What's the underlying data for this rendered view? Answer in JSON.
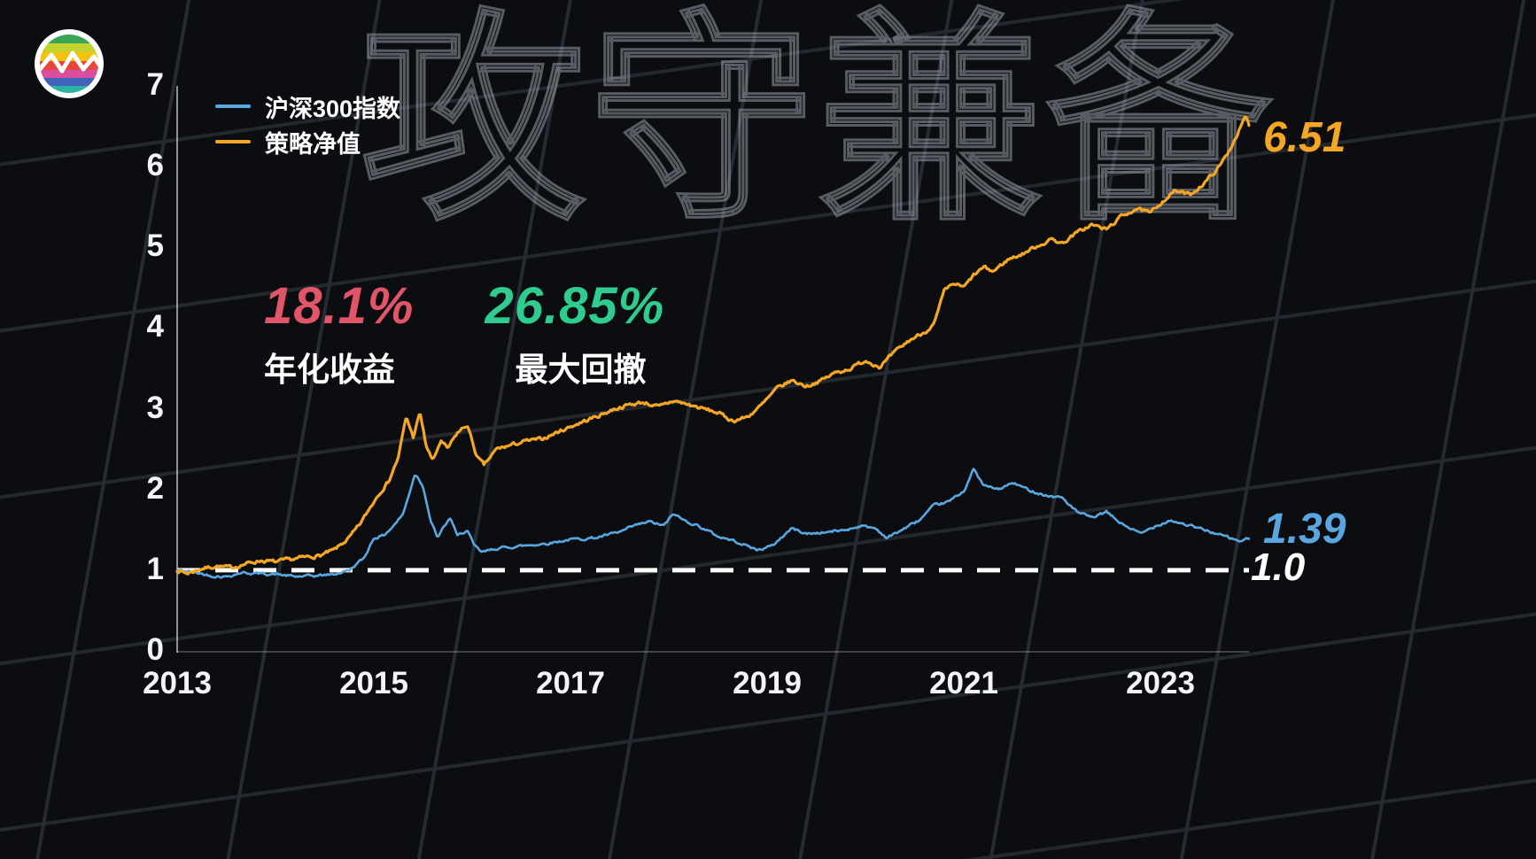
{
  "watermark": "攻守兼备",
  "logo": {
    "name": "rainbow-wave-logo"
  },
  "legend": {
    "items": [
      {
        "label": "沪深300指数",
        "color": "#5aa7e0"
      },
      {
        "label": "策略净值",
        "color": "#f5a623"
      }
    ]
  },
  "stats": {
    "annual_return_value": "18.1%",
    "annual_return_label": "年化收益",
    "annual_return_color": "#e25568",
    "max_drawdown_value": "26.85%",
    "max_drawdown_label": "最大回撤",
    "max_drawdown_color": "#2ecc8f"
  },
  "end_labels": {
    "strategy": "6.51",
    "index": "1.39",
    "baseline": "1.0"
  },
  "chart_data": {
    "type": "line",
    "title": "攻守兼备",
    "xlabel": "",
    "ylabel": "",
    "x_range": [
      2013,
      2024
    ],
    "y_range": [
      0,
      7
    ],
    "x_ticks": [
      2013,
      2015,
      2017,
      2019,
      2021,
      2023
    ],
    "y_ticks": [
      0,
      1,
      2,
      3,
      4,
      5,
      6,
      7
    ],
    "grid": false,
    "legend_position": "top-left",
    "baseline": 1.0,
    "series": [
      {
        "name": "沪深300指数",
        "color": "#5aa7e0",
        "end_value": 1.39,
        "points": [
          [
            2013.0,
            1.0
          ],
          [
            2013.15,
            0.98
          ],
          [
            2013.35,
            0.93
          ],
          [
            2013.5,
            0.92
          ],
          [
            2013.65,
            0.97
          ],
          [
            2013.8,
            0.96
          ],
          [
            2014.0,
            0.95
          ],
          [
            2014.2,
            0.92
          ],
          [
            2014.4,
            0.93
          ],
          [
            2014.6,
            0.95
          ],
          [
            2014.75,
            1.0
          ],
          [
            2014.9,
            1.15
          ],
          [
            2015.0,
            1.4
          ],
          [
            2015.1,
            1.43
          ],
          [
            2015.2,
            1.55
          ],
          [
            2015.3,
            1.7
          ],
          [
            2015.42,
            2.2
          ],
          [
            2015.5,
            2.05
          ],
          [
            2015.58,
            1.6
          ],
          [
            2015.65,
            1.4
          ],
          [
            2015.72,
            1.55
          ],
          [
            2015.78,
            1.65
          ],
          [
            2015.85,
            1.42
          ],
          [
            2015.95,
            1.5
          ],
          [
            2016.02,
            1.3
          ],
          [
            2016.1,
            1.22
          ],
          [
            2016.25,
            1.27
          ],
          [
            2016.5,
            1.3
          ],
          [
            2016.75,
            1.33
          ],
          [
            2017.0,
            1.38
          ],
          [
            2017.25,
            1.4
          ],
          [
            2017.5,
            1.47
          ],
          [
            2017.65,
            1.55
          ],
          [
            2017.8,
            1.6
          ],
          [
            2017.95,
            1.55
          ],
          [
            2018.05,
            1.7
          ],
          [
            2018.15,
            1.62
          ],
          [
            2018.3,
            1.55
          ],
          [
            2018.5,
            1.42
          ],
          [
            2018.7,
            1.35
          ],
          [
            2018.9,
            1.25
          ],
          [
            2019.05,
            1.3
          ],
          [
            2019.25,
            1.52
          ],
          [
            2019.4,
            1.45
          ],
          [
            2019.6,
            1.47
          ],
          [
            2019.8,
            1.5
          ],
          [
            2019.95,
            1.55
          ],
          [
            2020.1,
            1.52
          ],
          [
            2020.22,
            1.4
          ],
          [
            2020.4,
            1.52
          ],
          [
            2020.55,
            1.62
          ],
          [
            2020.7,
            1.8
          ],
          [
            2020.85,
            1.85
          ],
          [
            2021.0,
            1.98
          ],
          [
            2021.1,
            2.25
          ],
          [
            2021.2,
            2.05
          ],
          [
            2021.35,
            2.0
          ],
          [
            2021.5,
            2.08
          ],
          [
            2021.65,
            2.0
          ],
          [
            2021.85,
            1.92
          ],
          [
            2022.0,
            1.9
          ],
          [
            2022.15,
            1.72
          ],
          [
            2022.3,
            1.65
          ],
          [
            2022.45,
            1.72
          ],
          [
            2022.6,
            1.58
          ],
          [
            2022.8,
            1.45
          ],
          [
            2022.95,
            1.55
          ],
          [
            2023.1,
            1.62
          ],
          [
            2023.3,
            1.55
          ],
          [
            2023.5,
            1.48
          ],
          [
            2023.65,
            1.42
          ],
          [
            2023.8,
            1.36
          ],
          [
            2023.9,
            1.39
          ]
        ]
      },
      {
        "name": "策略净值",
        "color": "#f5a623",
        "end_value": 6.51,
        "points": [
          [
            2013.0,
            1.0
          ],
          [
            2013.1,
            0.96
          ],
          [
            2013.25,
            1.02
          ],
          [
            2013.4,
            1.05
          ],
          [
            2013.55,
            1.03
          ],
          [
            2013.7,
            1.08
          ],
          [
            2013.85,
            1.12
          ],
          [
            2014.0,
            1.1
          ],
          [
            2014.15,
            1.13
          ],
          [
            2014.3,
            1.16
          ],
          [
            2014.45,
            1.18
          ],
          [
            2014.6,
            1.25
          ],
          [
            2014.75,
            1.4
          ],
          [
            2014.85,
            1.55
          ],
          [
            2014.95,
            1.75
          ],
          [
            2015.05,
            1.95
          ],
          [
            2015.15,
            2.1
          ],
          [
            2015.25,
            2.4
          ],
          [
            2015.33,
            2.9
          ],
          [
            2015.4,
            2.65
          ],
          [
            2015.47,
            2.95
          ],
          [
            2015.53,
            2.55
          ],
          [
            2015.6,
            2.35
          ],
          [
            2015.68,
            2.6
          ],
          [
            2015.75,
            2.5
          ],
          [
            2015.85,
            2.7
          ],
          [
            2015.95,
            2.8
          ],
          [
            2016.05,
            2.4
          ],
          [
            2016.12,
            2.3
          ],
          [
            2016.25,
            2.5
          ],
          [
            2016.4,
            2.55
          ],
          [
            2016.55,
            2.6
          ],
          [
            2016.7,
            2.62
          ],
          [
            2016.85,
            2.7
          ],
          [
            2017.0,
            2.78
          ],
          [
            2017.15,
            2.85
          ],
          [
            2017.3,
            2.92
          ],
          [
            2017.45,
            3.0
          ],
          [
            2017.6,
            3.05
          ],
          [
            2017.75,
            3.08
          ],
          [
            2017.9,
            3.02
          ],
          [
            2018.05,
            3.1
          ],
          [
            2018.2,
            3.05
          ],
          [
            2018.35,
            3.0
          ],
          [
            2018.5,
            2.95
          ],
          [
            2018.65,
            2.85
          ],
          [
            2018.8,
            2.9
          ],
          [
            2018.95,
            3.05
          ],
          [
            2019.1,
            3.25
          ],
          [
            2019.25,
            3.35
          ],
          [
            2019.4,
            3.28
          ],
          [
            2019.55,
            3.35
          ],
          [
            2019.7,
            3.45
          ],
          [
            2019.85,
            3.5
          ],
          [
            2020.0,
            3.6
          ],
          [
            2020.15,
            3.52
          ],
          [
            2020.3,
            3.7
          ],
          [
            2020.45,
            3.85
          ],
          [
            2020.6,
            3.95
          ],
          [
            2020.7,
            4.05
          ],
          [
            2020.8,
            4.45
          ],
          [
            2020.9,
            4.55
          ],
          [
            2021.0,
            4.5
          ],
          [
            2021.1,
            4.65
          ],
          [
            2021.2,
            4.75
          ],
          [
            2021.3,
            4.7
          ],
          [
            2021.45,
            4.85
          ],
          [
            2021.6,
            4.92
          ],
          [
            2021.75,
            5.02
          ],
          [
            2021.9,
            5.1
          ],
          [
            2022.0,
            5.05
          ],
          [
            2022.15,
            5.18
          ],
          [
            2022.3,
            5.28
          ],
          [
            2022.45,
            5.22
          ],
          [
            2022.6,
            5.38
          ],
          [
            2022.75,
            5.48
          ],
          [
            2022.9,
            5.42
          ],
          [
            2023.0,
            5.55
          ],
          [
            2023.15,
            5.7
          ],
          [
            2023.3,
            5.65
          ],
          [
            2023.45,
            5.8
          ],
          [
            2023.6,
            6.0
          ],
          [
            2023.7,
            6.2
          ],
          [
            2023.8,
            6.45
          ],
          [
            2023.87,
            6.62
          ],
          [
            2023.9,
            6.51
          ]
        ]
      }
    ]
  }
}
